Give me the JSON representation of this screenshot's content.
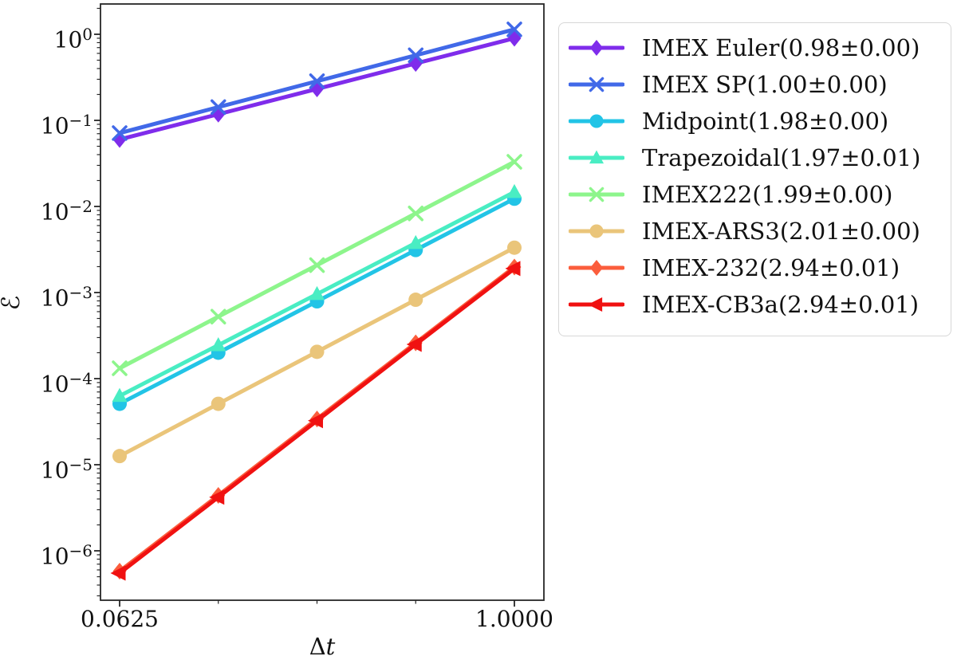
{
  "figure": {
    "background": "#ffffff",
    "frame_color": "#262626",
    "tick_color": "#262626",
    "text_color": "#111111"
  },
  "chart_data": {
    "type": "line",
    "title": "",
    "xlabel": {
      "prefix": "Δ",
      "var": "t"
    },
    "ylabel": "ℰ",
    "x_scale": "log2",
    "y_scale": "log10",
    "xlim": [
      0.055,
      1.26
    ],
    "ylim": [
      2.7e-07,
      2.25
    ],
    "grid": false,
    "legend_position": "outside-upper-right",
    "x": [
      0.0625,
      0.125,
      0.25,
      0.5,
      1.0
    ],
    "x_ticks": [
      {
        "label": "0.0625",
        "value": 0.0625
      },
      {
        "label": "1.0000",
        "value": 1.0
      }
    ],
    "x_minor_ticks": [
      0.125,
      0.25,
      0.5
    ],
    "y_tick_base": "10",
    "y_ticks": [
      {
        "exp": 0,
        "exp_label": "0"
      },
      {
        "exp": -1,
        "exp_label": "−1"
      },
      {
        "exp": -2,
        "exp_label": "−2"
      },
      {
        "exp": -3,
        "exp_label": "−3"
      },
      {
        "exp": -4,
        "exp_label": "−4"
      },
      {
        "exp": -5,
        "exp_label": "−5"
      },
      {
        "exp": -6,
        "exp_label": "−6"
      }
    ],
    "series": [
      {
        "name": "IMEX Euler(0.98±0.00)",
        "order": "0.98±0.00",
        "color": "#7F2CEB",
        "marker": "diamond",
        "values": [
          0.06,
          0.118,
          0.232,
          0.458,
          0.9
        ]
      },
      {
        "name": "IMEX SP(1.00±0.00)",
        "order": "1.00±0.00",
        "color": "#4169E8",
        "marker": "x",
        "values": [
          0.0712,
          0.1425,
          0.285,
          0.57,
          1.14
        ]
      },
      {
        "name": "Midpoint(1.98±0.00)",
        "order": "1.98±0.00",
        "color": "#22C4E6",
        "marker": "circle",
        "values": [
          5.1e-05,
          0.0002,
          0.00079,
          0.00312,
          0.0123
        ]
      },
      {
        "name": "Trapezoidal(1.97±0.01)",
        "order": "1.97±0.01",
        "color": "#49EDC3",
        "marker": "triangle-up",
        "values": [
          6.3e-05,
          0.000245,
          0.00096,
          0.00376,
          0.0147
        ]
      },
      {
        "name": "IMEX222(1.99±0.00)",
        "order": "1.99±0.00",
        "color": "#8DF58C",
        "marker": "x",
        "values": [
          0.000132,
          0.000525,
          0.00208,
          0.0083,
          0.033
        ]
      },
      {
        "name": "IMEX-ARS3(2.01±0.00)",
        "order": "2.01±0.00",
        "color": "#EAC57A",
        "marker": "circle",
        "values": [
          1.26e-05,
          5.1e-05,
          0.000205,
          0.000825,
          0.00332
        ]
      },
      {
        "name": "IMEX-232(2.94±0.01)",
        "order": "2.94±0.01",
        "color": "#FB5D3C",
        "marker": "diamond",
        "values": [
          5.8e-07,
          4.4e-06,
          3.4e-05,
          0.00026,
          0.00198
        ]
      },
      {
        "name": "IMEX-CB3a(2.94±0.01)",
        "order": "2.94±0.01",
        "color": "#F01111",
        "marker": "triangle-left",
        "values": [
          5.5e-07,
          4.2e-06,
          3.25e-05,
          0.00025,
          0.0019
        ]
      }
    ]
  }
}
